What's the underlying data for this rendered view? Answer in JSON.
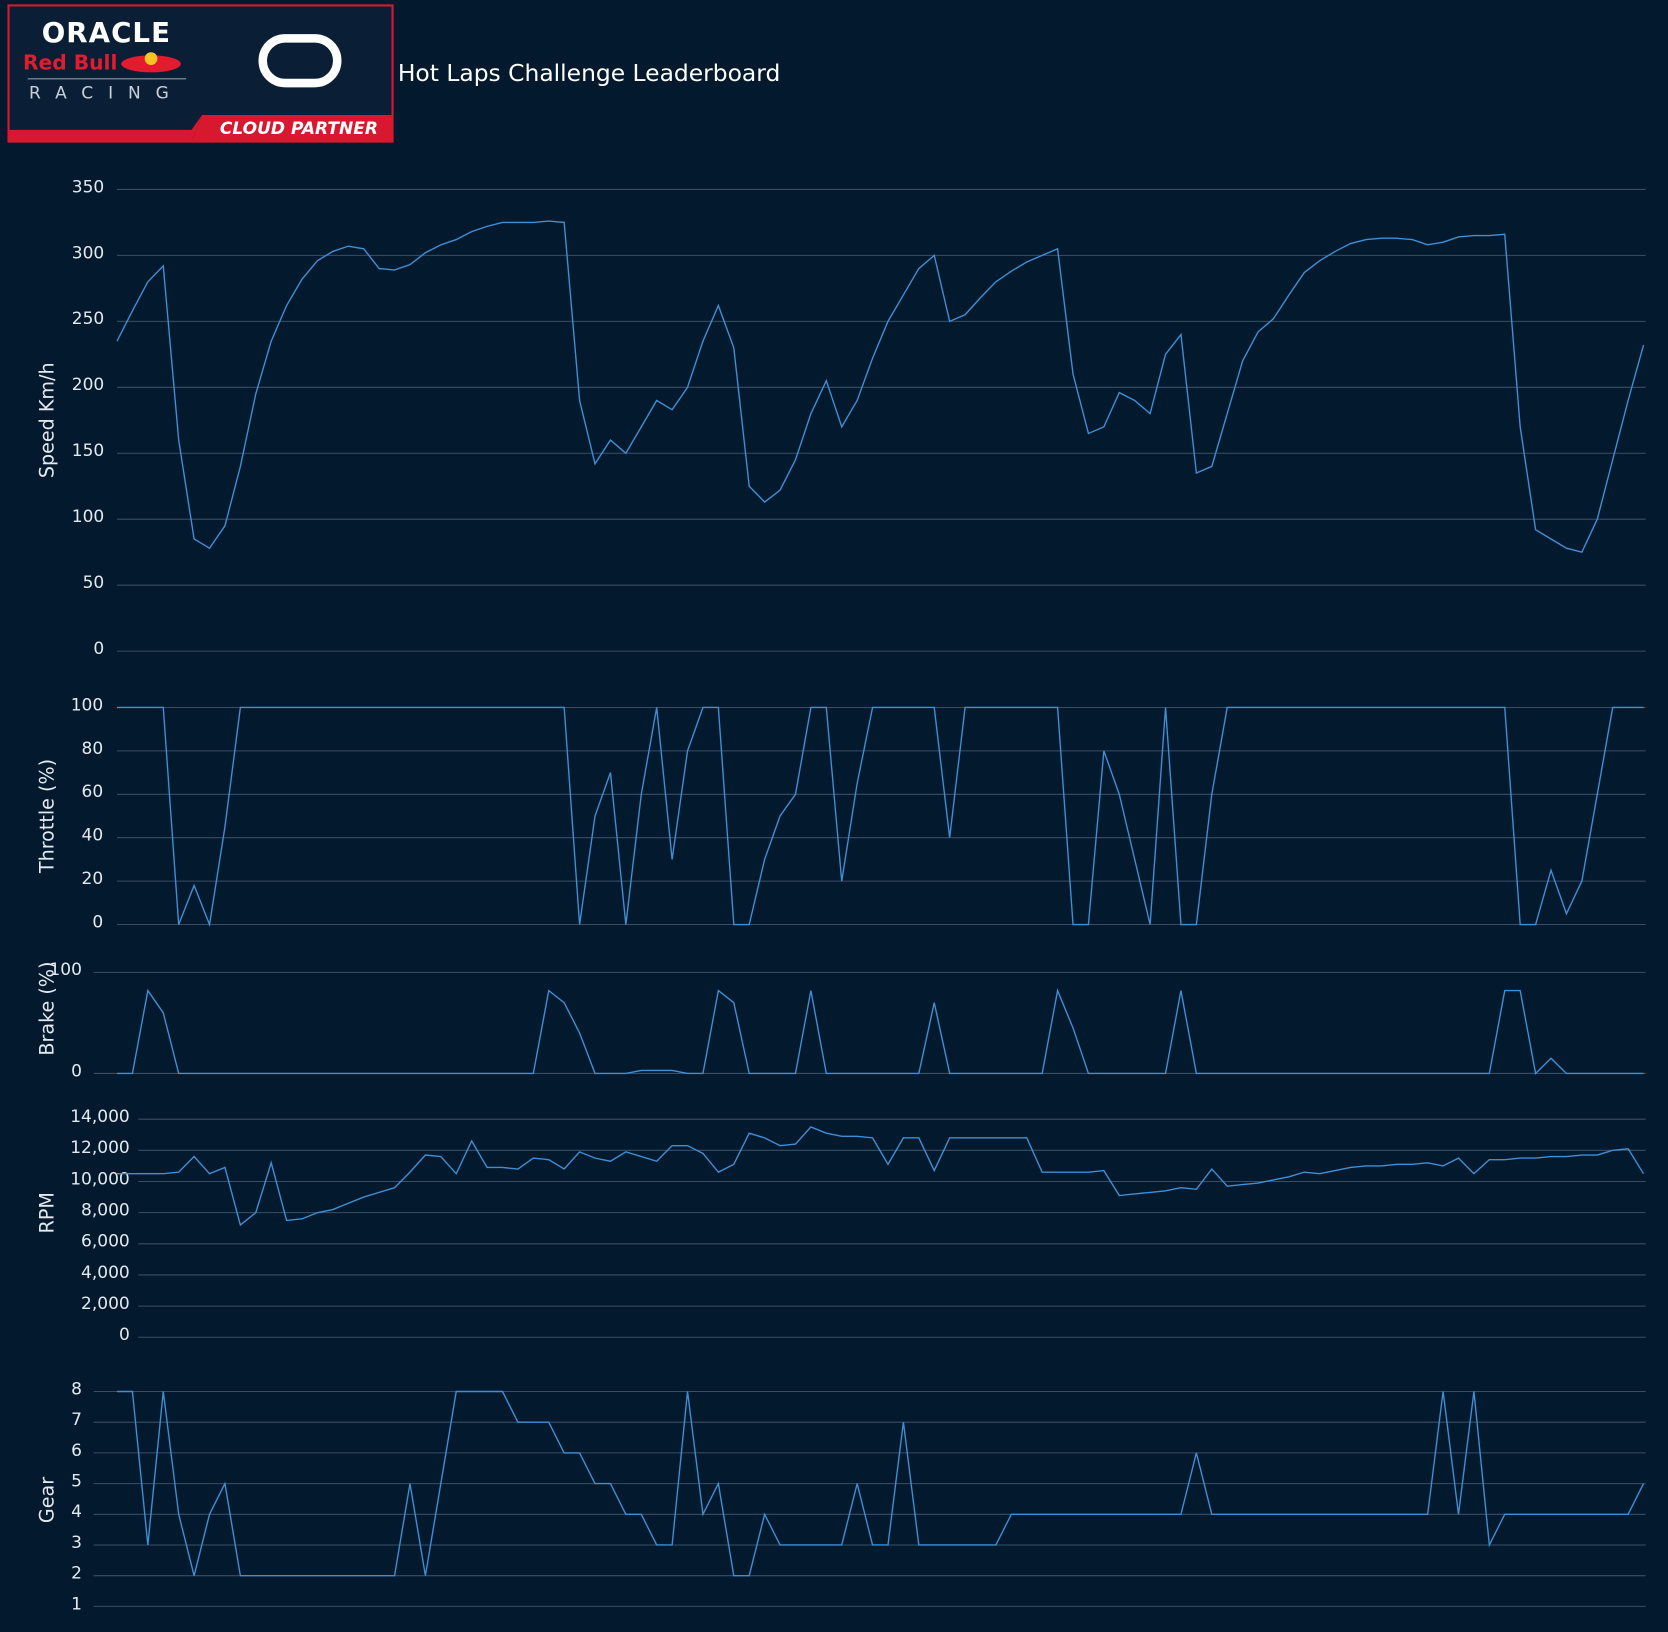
{
  "header": {
    "title": "Hot Laps Challenge Leaderboard",
    "logo": {
      "oracle": "ORACLE",
      "red_bull": "Red Bull",
      "racing": "RACING",
      "partner": "CLOUD PARTNER"
    }
  },
  "chart_data": [
    {
      "type": "line",
      "y_label": "Speed Km/h",
      "ylim": [
        0,
        350
      ],
      "yticks": [
        0,
        50,
        100,
        150,
        200,
        250,
        300,
        350
      ],
      "grid": true,
      "color": "#3d8fd6",
      "values": [
        235,
        258,
        280,
        292,
        160,
        85,
        78,
        95,
        140,
        195,
        235,
        262,
        282,
        296,
        303,
        307,
        305,
        290,
        289,
        293,
        302,
        308,
        312,
        318,
        322,
        325,
        325,
        325,
        326,
        325,
        190,
        142,
        160,
        150,
        170,
        190,
        183,
        200,
        235,
        262,
        230,
        125,
        113,
        122,
        145,
        180,
        205,
        170,
        190,
        222,
        250,
        270,
        290,
        300,
        250,
        255,
        268,
        280,
        288,
        295,
        300,
        305,
        210,
        165,
        170,
        196,
        190,
        180,
        225,
        240,
        135,
        140,
        180,
        220,
        242,
        252,
        270,
        287,
        296,
        303,
        309,
        312,
        313,
        313,
        312,
        308,
        310,
        314,
        315,
        315,
        316,
        170,
        92,
        85,
        78,
        75,
        100,
        145,
        190,
        232
      ]
    },
    {
      "type": "line",
      "y_label": "Throttle (%)",
      "ylim": [
        0,
        100
      ],
      "yticks": [
        0,
        20,
        40,
        60,
        80,
        100
      ],
      "grid": true,
      "color": "#3d8fd6",
      "values": [
        100,
        100,
        100,
        100,
        0,
        18,
        0,
        45,
        100,
        100,
        100,
        100,
        100,
        100,
        100,
        100,
        100,
        100,
        100,
        100,
        100,
        100,
        100,
        100,
        100,
        100,
        100,
        100,
        100,
        100,
        0,
        50,
        70,
        0,
        60,
        100,
        30,
        80,
        100,
        100,
        0,
        0,
        30,
        50,
        60,
        100,
        100,
        20,
        65,
        100,
        100,
        100,
        100,
        100,
        40,
        100,
        100,
        100,
        100,
        100,
        100,
        100,
        0,
        0,
        80,
        60,
        30,
        0,
        100,
        0,
        0,
        60,
        100,
        100,
        100,
        100,
        100,
        100,
        100,
        100,
        100,
        100,
        100,
        100,
        100,
        100,
        100,
        100,
        100,
        100,
        100,
        0,
        0,
        25,
        5,
        20,
        60,
        100,
        100,
        100
      ]
    },
    {
      "type": "line",
      "y_label": "Brake (%)",
      "ylim": [
        0,
        100
      ],
      "yticks": [
        0,
        100
      ],
      "grid": true,
      "color": "#3d8fd6",
      "values": [
        0,
        0,
        82,
        60,
        0,
        0,
        0,
        0,
        0,
        0,
        0,
        0,
        0,
        0,
        0,
        0,
        0,
        0,
        0,
        0,
        0,
        0,
        0,
        0,
        0,
        0,
        0,
        0,
        82,
        70,
        40,
        0,
        0,
        0,
        3,
        3,
        3,
        0,
        0,
        82,
        70,
        0,
        0,
        0,
        0,
        82,
        0,
        0,
        0,
        0,
        0,
        0,
        0,
        70,
        0,
        0,
        0,
        0,
        0,
        0,
        0,
        82,
        45,
        0,
        0,
        0,
        0,
        0,
        0,
        82,
        0,
        0,
        0,
        0,
        0,
        0,
        0,
        0,
        0,
        0,
        0,
        0,
        0,
        0,
        0,
        0,
        0,
        0,
        0,
        0,
        82,
        82,
        0,
        15,
        0,
        0,
        0,
        0,
        0,
        0
      ]
    },
    {
      "type": "line",
      "y_label": "RPM",
      "ylim": [
        0,
        14000
      ],
      "yticks": [
        0,
        {
          "value": 2000,
          "label": "2,000"
        },
        {
          "value": 4000,
          "label": "4,000"
        },
        {
          "value": 6000,
          "label": "6,000"
        },
        {
          "value": 8000,
          "label": "8,000"
        },
        {
          "value": 10000,
          "label": "10,000"
        },
        {
          "value": 12000,
          "label": "12,000"
        },
        {
          "value": 14000,
          "label": "14,000"
        }
      ],
      "grid": true,
      "color": "#3d8fd6",
      "values": [
        10500,
        10500,
        10500,
        10500,
        10600,
        11600,
        10500,
        10900,
        7200,
        8000,
        11200,
        7500,
        7600,
        8000,
        8200,
        8600,
        9000,
        9300,
        9600,
        10600,
        11700,
        11600,
        10500,
        12600,
        10900,
        10900,
        10800,
        11500,
        11400,
        10800,
        11900,
        11500,
        11300,
        11900,
        11600,
        11300,
        12300,
        12300,
        11800,
        10600,
        11100,
        13100,
        12800,
        12300,
        12400,
        13500,
        13100,
        12900,
        12900,
        12800,
        11100,
        12800,
        12800,
        10700,
        12800,
        12800,
        12800,
        12800,
        12800,
        12800,
        10600,
        10600,
        10600,
        10600,
        10700,
        9100,
        9200,
        9300,
        9400,
        9600,
        9500,
        10800,
        9700,
        9800,
        9900,
        10100,
        10300,
        10600,
        10500,
        10700,
        10900,
        11000,
        11000,
        11100,
        11100,
        11200,
        11000,
        11500,
        10500,
        11400,
        11400,
        11500,
        11500,
        11600,
        11600,
        11700,
        11700,
        12000,
        12100,
        10500
      ]
    },
    {
      "type": "line",
      "y_label": "Gear",
      "ylim": [
        1,
        8
      ],
      "yticks": [
        1,
        2,
        3,
        4,
        5,
        6,
        7,
        8
      ],
      "grid": true,
      "color": "#3d8fd6",
      "values": [
        8,
        8,
        3,
        8,
        4,
        2,
        4,
        5,
        2,
        2,
        2,
        2,
        2,
        2,
        2,
        2,
        2,
        2,
        2,
        5,
        2,
        5,
        8,
        8,
        8,
        8,
        7,
        7,
        7,
        6,
        6,
        5,
        5,
        4,
        4,
        3,
        3,
        8,
        4,
        5,
        2,
        2,
        4,
        3,
        3,
        3,
        3,
        3,
        5,
        3,
        3,
        7,
        3,
        3,
        3,
        3,
        3,
        3,
        4,
        4,
        4,
        4,
        4,
        4,
        4,
        4,
        4,
        4,
        4,
        4,
        6,
        4,
        4,
        4,
        4,
        4,
        4,
        4,
        4,
        4,
        4,
        4,
        4,
        4,
        4,
        4,
        8,
        4,
        8,
        3,
        4,
        4,
        4,
        4,
        4,
        4,
        4,
        4,
        4,
        5
      ]
    }
  ]
}
